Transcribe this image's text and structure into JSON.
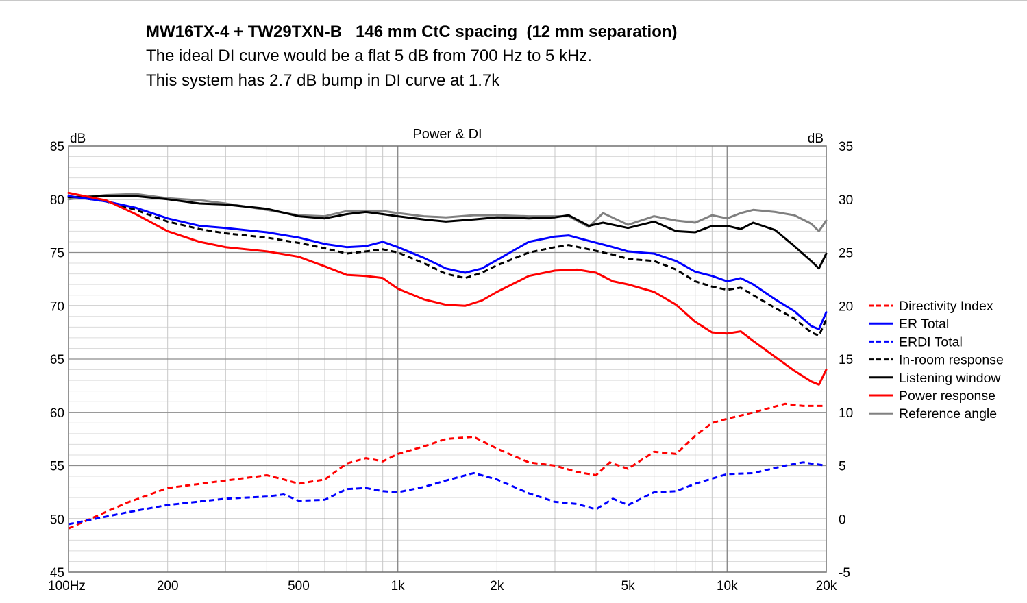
{
  "header": {
    "title": "MW16TX-4 + TW29TXN-B   146 mm CtC spacing  (12 mm separation)",
    "line1": "The ideal DI curve would be a flat 5 dB from 700 Hz to 5 kHz.",
    "line2": "This system has 2.7 dB bump in DI curve at 1.7k"
  },
  "chart_data": {
    "type": "line",
    "title": "Power & DI",
    "left_unit": "dB",
    "right_unit": "dB",
    "x_scale": "log",
    "x_range_hz": [
      100,
      20000
    ],
    "y_left_range": [
      45,
      85
    ],
    "y_right_range": [
      -5,
      35
    ],
    "x_ticks": [
      {
        "v": 100,
        "label": "100Hz"
      },
      {
        "v": 200,
        "label": "200"
      },
      {
        "v": 500,
        "label": "500"
      },
      {
        "v": 1000,
        "label": "1k"
      },
      {
        "v": 2000,
        "label": "2k"
      },
      {
        "v": 5000,
        "label": "5k"
      },
      {
        "v": 10000,
        "label": "10k"
      },
      {
        "v": 20000,
        "label": "20k"
      }
    ],
    "y_left_ticks": [
      "85",
      "80",
      "75",
      "70",
      "65",
      "60",
      "55",
      "50",
      "45"
    ],
    "y_right_ticks": [
      "35",
      "30",
      "25",
      "20",
      "15",
      "10",
      "5",
      "0",
      "-5"
    ],
    "grid": true,
    "legend_position": "right",
    "colors": {
      "red": "#ff0000",
      "blue": "#0000ff",
      "black": "#000000",
      "gray": "#808080"
    },
    "series": [
      {
        "name": "Directivity Index",
        "color": "#ff0000",
        "dash": true,
        "axis": "right",
        "points": [
          [
            100,
            -0.9
          ],
          [
            150,
            1.5
          ],
          [
            200,
            2.9
          ],
          [
            300,
            3.6
          ],
          [
            400,
            4.1
          ],
          [
            450,
            3.7
          ],
          [
            500,
            3.3
          ],
          [
            600,
            3.7
          ],
          [
            700,
            5.2
          ],
          [
            800,
            5.7
          ],
          [
            900,
            5.4
          ],
          [
            1000,
            6.1
          ],
          [
            1200,
            6.8
          ],
          [
            1400,
            7.5
          ],
          [
            1700,
            7.7
          ],
          [
            2000,
            6.6
          ],
          [
            2500,
            5.3
          ],
          [
            3000,
            5.0
          ],
          [
            3500,
            4.4
          ],
          [
            4000,
            4.1
          ],
          [
            4400,
            5.3
          ],
          [
            5000,
            4.7
          ],
          [
            6000,
            6.3
          ],
          [
            7000,
            6.1
          ],
          [
            8000,
            7.8
          ],
          [
            9000,
            9.0
          ],
          [
            10000,
            9.4
          ],
          [
            12000,
            10.0
          ],
          [
            15000,
            10.8
          ],
          [
            17000,
            10.6
          ],
          [
            20000,
            10.6
          ]
        ]
      },
      {
        "name": "ER Total",
        "color": "#0000ff",
        "dash": false,
        "axis": "left",
        "points": [
          [
            100,
            80.3
          ],
          [
            130,
            79.8
          ],
          [
            160,
            79.2
          ],
          [
            200,
            78.2
          ],
          [
            250,
            77.5
          ],
          [
            300,
            77.3
          ],
          [
            400,
            76.9
          ],
          [
            500,
            76.4
          ],
          [
            600,
            75.8
          ],
          [
            700,
            75.5
          ],
          [
            800,
            75.6
          ],
          [
            900,
            76.0
          ],
          [
            1000,
            75.5
          ],
          [
            1200,
            74.5
          ],
          [
            1400,
            73.5
          ],
          [
            1600,
            73.1
          ],
          [
            1800,
            73.5
          ],
          [
            2000,
            74.3
          ],
          [
            2500,
            76.0
          ],
          [
            3000,
            76.5
          ],
          [
            3300,
            76.6
          ],
          [
            3800,
            76.1
          ],
          [
            4500,
            75.5
          ],
          [
            5000,
            75.1
          ],
          [
            6000,
            74.9
          ],
          [
            7000,
            74.2
          ],
          [
            8000,
            73.2
          ],
          [
            9000,
            72.8
          ],
          [
            10000,
            72.3
          ],
          [
            11000,
            72.6
          ],
          [
            12000,
            72.0
          ],
          [
            14000,
            70.6
          ],
          [
            16000,
            69.5
          ],
          [
            18000,
            68.1
          ],
          [
            19000,
            67.8
          ],
          [
            20000,
            69.4
          ]
        ]
      },
      {
        "name": "ERDI Total",
        "color": "#0000ff",
        "dash": true,
        "axis": "right",
        "points": [
          [
            100,
            -0.5
          ],
          [
            150,
            0.6
          ],
          [
            200,
            1.3
          ],
          [
            300,
            1.9
          ],
          [
            400,
            2.1
          ],
          [
            450,
            2.3
          ],
          [
            500,
            1.7
          ],
          [
            600,
            1.8
          ],
          [
            700,
            2.8
          ],
          [
            800,
            2.9
          ],
          [
            900,
            2.6
          ],
          [
            1000,
            2.5
          ],
          [
            1200,
            3.0
          ],
          [
            1400,
            3.6
          ],
          [
            1700,
            4.3
          ],
          [
            2000,
            3.7
          ],
          [
            2500,
            2.4
          ],
          [
            3000,
            1.6
          ],
          [
            3500,
            1.4
          ],
          [
            4000,
            0.9
          ],
          [
            4500,
            1.9
          ],
          [
            5000,
            1.3
          ],
          [
            6000,
            2.5
          ],
          [
            7000,
            2.6
          ],
          [
            8000,
            3.3
          ],
          [
            10000,
            4.2
          ],
          [
            12000,
            4.3
          ],
          [
            15000,
            5.0
          ],
          [
            17000,
            5.3
          ],
          [
            20000,
            5.0
          ]
        ]
      },
      {
        "name": "In-room response",
        "color": "#000000",
        "dash": true,
        "axis": "left",
        "points": [
          [
            100,
            80.3
          ],
          [
            130,
            79.8
          ],
          [
            160,
            79.0
          ],
          [
            200,
            77.9
          ],
          [
            250,
            77.2
          ],
          [
            300,
            76.8
          ],
          [
            400,
            76.4
          ],
          [
            500,
            75.9
          ],
          [
            600,
            75.4
          ],
          [
            700,
            74.9
          ],
          [
            800,
            75.1
          ],
          [
            900,
            75.3
          ],
          [
            1000,
            75.0
          ],
          [
            1200,
            74.0
          ],
          [
            1400,
            73.0
          ],
          [
            1600,
            72.6
          ],
          [
            1800,
            73.1
          ],
          [
            2000,
            73.8
          ],
          [
            2500,
            75.0
          ],
          [
            3000,
            75.5
          ],
          [
            3300,
            75.7
          ],
          [
            3800,
            75.3
          ],
          [
            4500,
            74.8
          ],
          [
            5000,
            74.4
          ],
          [
            6000,
            74.2
          ],
          [
            7000,
            73.4
          ],
          [
            8000,
            72.3
          ],
          [
            9000,
            71.8
          ],
          [
            10000,
            71.5
          ],
          [
            11000,
            71.7
          ],
          [
            12000,
            71.0
          ],
          [
            14000,
            69.8
          ],
          [
            16000,
            68.8
          ],
          [
            18000,
            67.5
          ],
          [
            19000,
            67.2
          ],
          [
            20000,
            68.7
          ]
        ]
      },
      {
        "name": "Listening window",
        "color": "#000000",
        "dash": false,
        "axis": "left",
        "points": [
          [
            100,
            80.2
          ],
          [
            130,
            80.3
          ],
          [
            160,
            80.3
          ],
          [
            200,
            80.0
          ],
          [
            250,
            79.6
          ],
          [
            300,
            79.5
          ],
          [
            400,
            79.1
          ],
          [
            500,
            78.4
          ],
          [
            600,
            78.2
          ],
          [
            700,
            78.6
          ],
          [
            800,
            78.8
          ],
          [
            900,
            78.6
          ],
          [
            1000,
            78.4
          ],
          [
            1200,
            78.1
          ],
          [
            1400,
            77.9
          ],
          [
            1700,
            78.1
          ],
          [
            2000,
            78.3
          ],
          [
            2500,
            78.2
          ],
          [
            3000,
            78.3
          ],
          [
            3300,
            78.5
          ],
          [
            3800,
            77.5
          ],
          [
            4200,
            77.8
          ],
          [
            5000,
            77.3
          ],
          [
            6000,
            77.9
          ],
          [
            7000,
            77.0
          ],
          [
            8000,
            76.9
          ],
          [
            9000,
            77.5
          ],
          [
            10000,
            77.5
          ],
          [
            11000,
            77.2
          ],
          [
            12000,
            77.8
          ],
          [
            14000,
            77.1
          ],
          [
            16000,
            75.6
          ],
          [
            18000,
            74.2
          ],
          [
            19000,
            73.5
          ],
          [
            20000,
            74.9
          ]
        ]
      },
      {
        "name": "Power response",
        "color": "#ff0000",
        "dash": false,
        "axis": "left",
        "points": [
          [
            100,
            80.6
          ],
          [
            130,
            79.9
          ],
          [
            160,
            78.6
          ],
          [
            200,
            77.0
          ],
          [
            250,
            76.0
          ],
          [
            300,
            75.5
          ],
          [
            400,
            75.1
          ],
          [
            500,
            74.6
          ],
          [
            600,
            73.7
          ],
          [
            700,
            72.9
          ],
          [
            800,
            72.8
          ],
          [
            900,
            72.6
          ],
          [
            1000,
            71.6
          ],
          [
            1200,
            70.6
          ],
          [
            1400,
            70.1
          ],
          [
            1600,
            70.0
          ],
          [
            1800,
            70.5
          ],
          [
            2000,
            71.3
          ],
          [
            2500,
            72.8
          ],
          [
            3000,
            73.3
          ],
          [
            3500,
            73.4
          ],
          [
            4000,
            73.1
          ],
          [
            4500,
            72.3
          ],
          [
            5000,
            72.0
          ],
          [
            6000,
            71.3
          ],
          [
            7000,
            70.1
          ],
          [
            8000,
            68.5
          ],
          [
            9000,
            67.5
          ],
          [
            10000,
            67.4
          ],
          [
            11000,
            67.6
          ],
          [
            12000,
            66.7
          ],
          [
            14000,
            65.2
          ],
          [
            16000,
            63.9
          ],
          [
            18000,
            62.9
          ],
          [
            19000,
            62.6
          ],
          [
            20000,
            64.0
          ]
        ]
      },
      {
        "name": "Reference angle",
        "color": "#808080",
        "dash": false,
        "axis": "left",
        "points": [
          [
            100,
            80.0
          ],
          [
            130,
            80.4
          ],
          [
            160,
            80.5
          ],
          [
            200,
            80.1
          ],
          [
            250,
            79.9
          ],
          [
            300,
            79.6
          ],
          [
            400,
            79.0
          ],
          [
            500,
            78.5
          ],
          [
            600,
            78.4
          ],
          [
            700,
            78.9
          ],
          [
            800,
            78.9
          ],
          [
            900,
            78.9
          ],
          [
            1000,
            78.7
          ],
          [
            1200,
            78.4
          ],
          [
            1400,
            78.3
          ],
          [
            1700,
            78.5
          ],
          [
            2000,
            78.5
          ],
          [
            2500,
            78.4
          ],
          [
            3000,
            78.4
          ],
          [
            3300,
            78.4
          ],
          [
            3800,
            77.4
          ],
          [
            4200,
            78.7
          ],
          [
            5000,
            77.6
          ],
          [
            6000,
            78.4
          ],
          [
            7000,
            78.0
          ],
          [
            8000,
            77.8
          ],
          [
            9000,
            78.5
          ],
          [
            10000,
            78.2
          ],
          [
            11000,
            78.7
          ],
          [
            12000,
            79.0
          ],
          [
            14000,
            78.8
          ],
          [
            16000,
            78.5
          ],
          [
            18000,
            77.7
          ],
          [
            19000,
            77.0
          ],
          [
            20000,
            78.0
          ]
        ]
      }
    ]
  }
}
